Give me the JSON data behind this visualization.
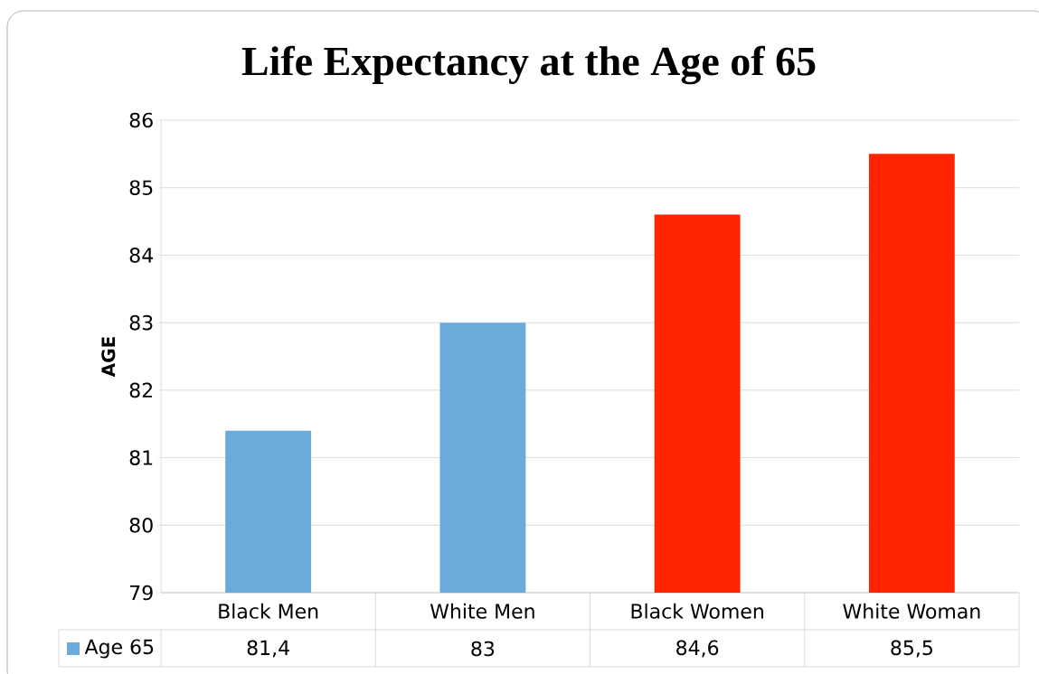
{
  "chart_data": {
    "type": "bar",
    "title": "Life Expectancy at the Age of 65",
    "ylabel": "AGE",
    "categories": [
      "Black Men",
      "White Men",
      "Black Women",
      "White Woman"
    ],
    "series": [
      {
        "name": "Age 65",
        "color": "#6aabdb",
        "colors": [
          "#6aabdb",
          "#6aabdb",
          "#ff2500",
          "#ff2500"
        ],
        "values": [
          81.4,
          83,
          84.6,
          85.5
        ],
        "value_labels": [
          "81,4",
          "83",
          "84,6",
          "85,5"
        ]
      }
    ],
    "ylim": [
      79,
      86
    ],
    "yticks": [
      79,
      80,
      81,
      82,
      83,
      84,
      85,
      86
    ],
    "grid": "y",
    "legend": "bottom"
  }
}
